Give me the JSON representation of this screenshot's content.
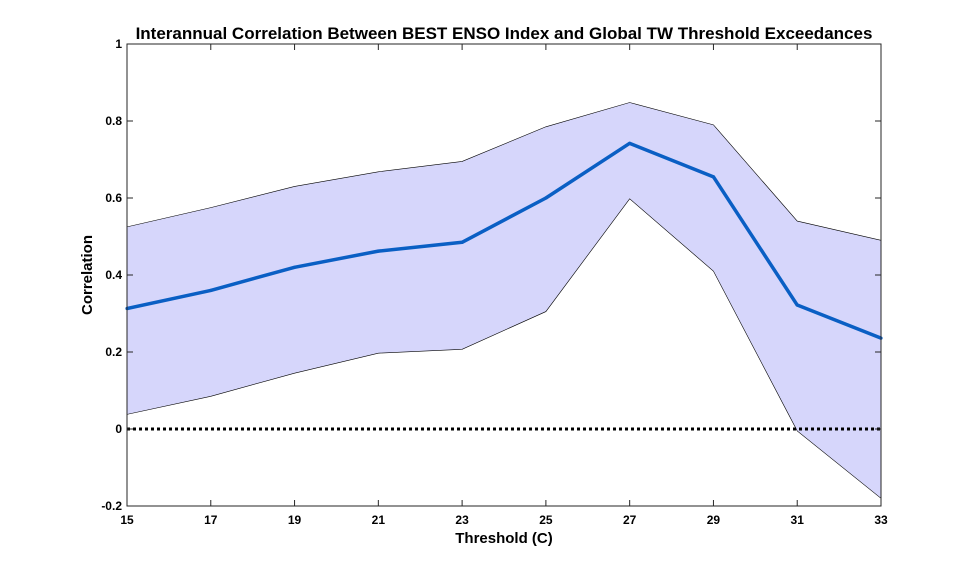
{
  "chart_data": {
    "type": "line",
    "title": "Interannual Correlation Between BEST ENSO Index and Global TW Threshold Exceedances",
    "xlabel": "Threshold (C)",
    "ylabel": "Correlation",
    "xlim": [
      15,
      33
    ],
    "ylim": [
      -0.2,
      1
    ],
    "x_ticks": [
      15,
      17,
      19,
      21,
      23,
      25,
      27,
      29,
      31,
      33
    ],
    "y_ticks": [
      -0.2,
      0,
      0.2,
      0.4,
      0.6,
      0.8,
      1
    ],
    "y_tick_labels": [
      "-0.2",
      "0",
      "0.2",
      "0.4",
      "0.6",
      "0.8",
      "1"
    ],
    "x": [
      15,
      17,
      19,
      21,
      23,
      25,
      27,
      29,
      31,
      33
    ],
    "series": [
      {
        "values": [
          0.313,
          0.36,
          0.42,
          0.462,
          0.485,
          0.6,
          0.742,
          0.655,
          0.322,
          0.236
        ],
        "color": "#0a5fc4"
      }
    ],
    "confidence_band": {
      "upper": [
        0.525,
        0.575,
        0.63,
        0.668,
        0.695,
        0.785,
        0.848,
        0.79,
        0.54,
        0.49
      ],
      "lower": [
        0.038,
        0.085,
        0.145,
        0.197,
        0.207,
        0.305,
        0.598,
        0.41,
        -0.005,
        -0.18
      ],
      "fill_color": "#d6d6fb",
      "edge_color": "#000000"
    },
    "reference_line": {
      "y": 0,
      "style": "dotted",
      "color": "#000000"
    },
    "grid": false,
    "legend": "none"
  }
}
